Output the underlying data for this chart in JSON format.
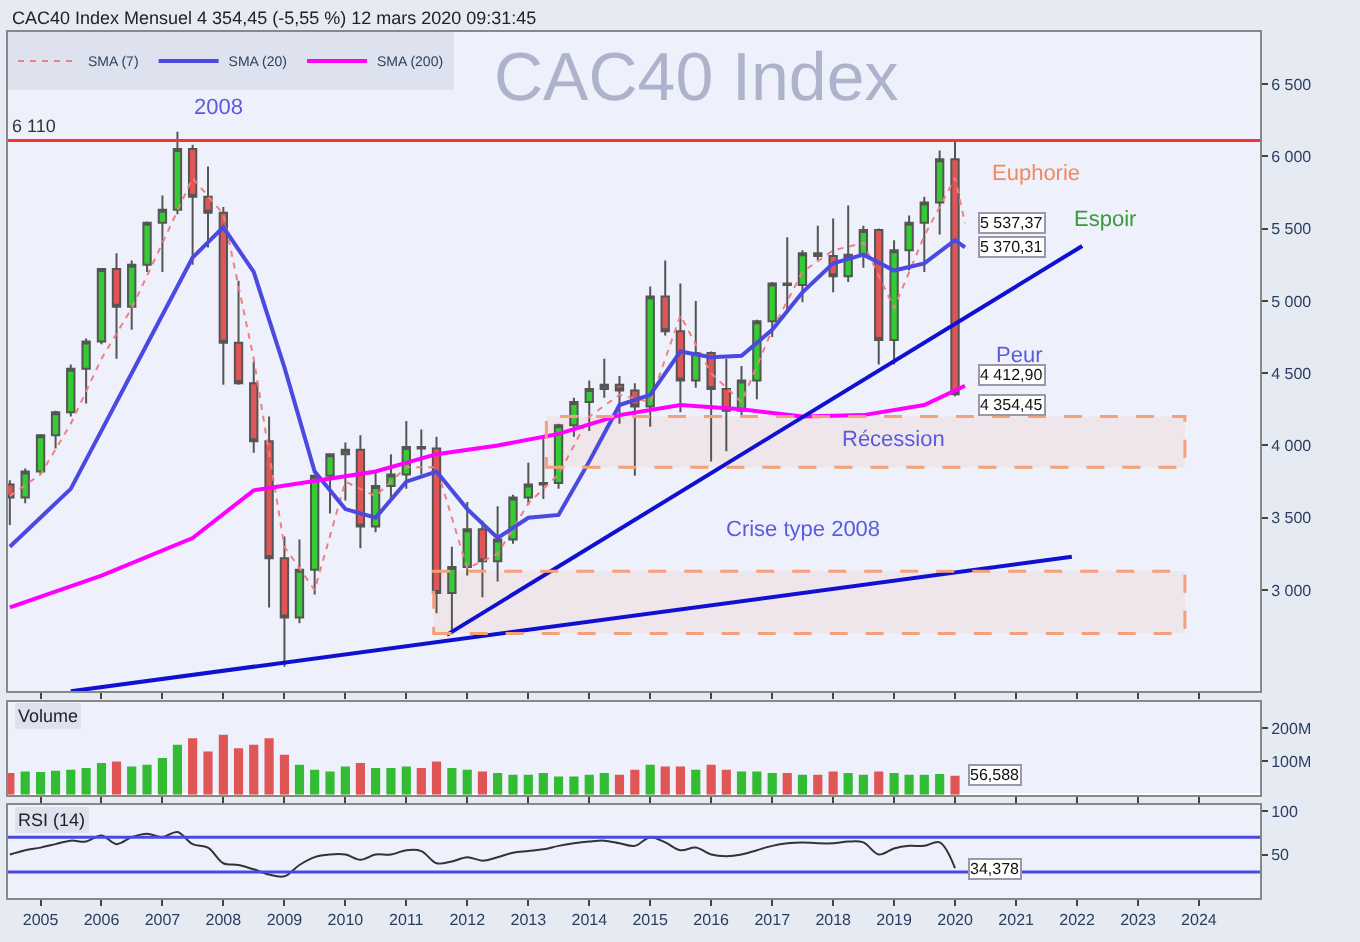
{
  "chart_data": [
    {
      "type": "candlestick",
      "title": "CAC40 Index",
      "subtitle": "CAC40 Index Mensuel 4 354,45 (-5,55 %) 12 mars 2020 09:31:45",
      "x": [
        "2004-07",
        "2004-10",
        "2005-01",
        "2005-04",
        "2005-07",
        "2005-10",
        "2006-01",
        "2006-04",
        "2006-07",
        "2006-10",
        "2007-01",
        "2007-04",
        "2007-07",
        "2007-10",
        "2008-01",
        "2008-04",
        "2008-07",
        "2008-10",
        "2009-01",
        "2009-04",
        "2009-07",
        "2009-10",
        "2010-01",
        "2010-04",
        "2010-07",
        "2010-10",
        "2011-01",
        "2011-04",
        "2011-07",
        "2011-10",
        "2012-01",
        "2012-04",
        "2012-07",
        "2012-10",
        "2013-01",
        "2013-04",
        "2013-07",
        "2013-10",
        "2014-01",
        "2014-04",
        "2014-07",
        "2014-10",
        "2015-01",
        "2015-04",
        "2015-07",
        "2015-10",
        "2016-01",
        "2016-04",
        "2016-07",
        "2016-10",
        "2017-01",
        "2017-04",
        "2017-07",
        "2017-10",
        "2018-01",
        "2018-04",
        "2018-07",
        "2018-10",
        "2019-01",
        "2019-04",
        "2019-07",
        "2019-10",
        "2020-01"
      ],
      "ohlc": [
        [
          3730,
          3760,
          3450,
          3640
        ],
        [
          3640,
          3840,
          3600,
          3820
        ],
        [
          3820,
          4080,
          3800,
          4070
        ],
        [
          4070,
          4240,
          3980,
          4230
        ],
        [
          4230,
          4560,
          4200,
          4530
        ],
        [
          4530,
          4740,
          4290,
          4720
        ],
        [
          4720,
          5220,
          4700,
          5220
        ],
        [
          5220,
          5330,
          4600,
          4960
        ],
        [
          4960,
          5280,
          4800,
          5250
        ],
        [
          5250,
          5550,
          5200,
          5540
        ],
        [
          5540,
          5730,
          5200,
          5630
        ],
        [
          5630,
          6170,
          5600,
          6050
        ],
        [
          6050,
          6080,
          5250,
          5720
        ],
        [
          5720,
          5930,
          5370,
          5610
        ],
        [
          5610,
          5650,
          4420,
          4710
        ],
        [
          4710,
          5140,
          4420,
          4430
        ],
        [
          4430,
          4580,
          3950,
          4030
        ],
        [
          4030,
          4200,
          2880,
          3220
        ],
        [
          3220,
          3370,
          2470,
          2810
        ],
        [
          2810,
          3350,
          2770,
          3140
        ],
        [
          3140,
          3800,
          2970,
          3790
        ],
        [
          3790,
          3940,
          3530,
          3940
        ],
        [
          3940,
          4020,
          3620,
          3970
        ],
        [
          3970,
          4070,
          3290,
          3440
        ],
        [
          3440,
          3830,
          3400,
          3720
        ],
        [
          3720,
          3940,
          3640,
          3800
        ],
        [
          3800,
          4170,
          3700,
          3990
        ],
        [
          3990,
          4110,
          3800,
          3980
        ],
        [
          3980,
          4060,
          2840,
          2980
        ],
        [
          2980,
          3300,
          2700,
          3160
        ],
        [
          3160,
          3610,
          3100,
          3420
        ],
        [
          3420,
          3480,
          2950,
          3200
        ],
        [
          3200,
          3580,
          3060,
          3350
        ],
        [
          3350,
          3660,
          3320,
          3640
        ],
        [
          3640,
          3880,
          3590,
          3730
        ],
        [
          3730,
          4050,
          3630,
          3740
        ],
        [
          3740,
          4150,
          3700,
          4140
        ],
        [
          4140,
          4330,
          4060,
          4300
        ],
        [
          4300,
          4450,
          4100,
          4390
        ],
        [
          4390,
          4600,
          4330,
          4420
        ],
        [
          4420,
          4480,
          4150,
          4380
        ],
        [
          4380,
          4430,
          3790,
          4270
        ],
        [
          4270,
          5100,
          4130,
          5030
        ],
        [
          5030,
          5280,
          4760,
          4790
        ],
        [
          4790,
          5120,
          4230,
          4450
        ],
        [
          4450,
          5000,
          4400,
          4640
        ],
        [
          4640,
          4650,
          3890,
          4390
        ],
        [
          4390,
          4600,
          3960,
          4240
        ],
        [
          4240,
          4550,
          4210,
          4450
        ],
        [
          4450,
          4870,
          4320,
          4860
        ],
        [
          4860,
          5130,
          4750,
          5120
        ],
        [
          5120,
          5440,
          4930,
          5110
        ],
        [
          5110,
          5350,
          4990,
          5330
        ],
        [
          5330,
          5520,
          5280,
          5310
        ],
        [
          5310,
          5570,
          5060,
          5170
        ],
        [
          5170,
          5660,
          5130,
          5320
        ],
        [
          5320,
          5520,
          5230,
          5490
        ],
        [
          5490,
          5500,
          4560,
          4730
        ],
        [
          4730,
          5420,
          4560,
          5350
        ],
        [
          5350,
          5590,
          5210,
          5540
        ],
        [
          5540,
          5720,
          5200,
          5680
        ],
        [
          5680,
          6040,
          5460,
          5980
        ],
        [
          5980,
          6110,
          4340,
          4354.45
        ]
      ],
      "series": [
        {
          "name": "SMA (7)",
          "type": "line",
          "color": "#f08080",
          "line_style": "dotted",
          "x": [
            "2004-07",
            "2005-01",
            "2005-07",
            "2006-01",
            "2006-07",
            "2007-01",
            "2007-07",
            "2008-01",
            "2008-07",
            "2009-01",
            "2009-07",
            "2010-01",
            "2010-07",
            "2011-01",
            "2011-07",
            "2012-01",
            "2012-07",
            "2013-01",
            "2013-07",
            "2014-01",
            "2014-07",
            "2015-01",
            "2015-07",
            "2016-01",
            "2016-07",
            "2017-01",
            "2017-07",
            "2018-01",
            "2018-07",
            "2019-01",
            "2019-07",
            "2020-01",
            "2020-03"
          ],
          "values": [
            3650,
            3800,
            4150,
            4600,
            4950,
            5400,
            5850,
            5600,
            4600,
            3300,
            3000,
            3750,
            3650,
            3850,
            3850,
            3150,
            3250,
            3600,
            3800,
            4200,
            4350,
            4300,
            4900,
            4500,
            4300,
            4800,
            5200,
            5350,
            5400,
            4950,
            5450,
            5850,
            5537.37
          ]
        },
        {
          "name": "SMA (20)",
          "type": "line",
          "color": "#4a4ae0",
          "line_style": "solid",
          "x": [
            "2004-07",
            "2005-07",
            "2006-07",
            "2007-07",
            "2008-01",
            "2008-07",
            "2009-01",
            "2009-07",
            "2010-01",
            "2010-07",
            "2011-01",
            "2011-07",
            "2012-01",
            "2012-07",
            "2013-01",
            "2013-07",
            "2014-01",
            "2014-07",
            "2015-01",
            "2015-07",
            "2016-01",
            "2016-07",
            "2017-01",
            "2017-07",
            "2018-01",
            "2018-07",
            "2019-01",
            "2019-07",
            "2020-01",
            "2020-03"
          ],
          "values": [
            3300,
            3700,
            4500,
            5300,
            5510,
            5200,
            4540,
            3820,
            3560,
            3500,
            3750,
            3820,
            3560,
            3360,
            3500,
            3520,
            3890,
            4280,
            4350,
            4650,
            4610,
            4620,
            4800,
            5060,
            5260,
            5320,
            5210,
            5260,
            5420,
            5370.31
          ]
        },
        {
          "name": "SMA (200)",
          "type": "line",
          "color": "#ff00ff",
          "line_style": "solid",
          "x": [
            "2004-07",
            "2006-01",
            "2007-07",
            "2008-07",
            "2009-07",
            "2010-07",
            "2011-07",
            "2012-07",
            "2013-07",
            "2014-07",
            "2015-07",
            "2016-07",
            "2017-07",
            "2018-07",
            "2019-07",
            "2020-03"
          ],
          "values": [
            2880,
            3100,
            3360,
            3690,
            3755,
            3820,
            3940,
            4000,
            4080,
            4210,
            4280,
            4250,
            4200,
            4210,
            4280,
            4412.9
          ]
        },
        {
          "type": "line",
          "color": "#1010d0",
          "line_style": "solid",
          "x": [
            "2011-09",
            "2022-02"
          ],
          "values": [
            2690,
            5380
          ]
        },
        {
          "type": "line",
          "color": "#1010d0",
          "line_style": "solid",
          "x": [
            "2005-07",
            "2021-12"
          ],
          "values": [
            2300,
            3230
          ]
        }
      ],
      "ref_lines": [
        {
          "axis": "y",
          "value": 6110,
          "label": "6 110",
          "color": "#ff3030"
        }
      ],
      "bands": [
        {
          "axis": "y",
          "from": 3850,
          "to": 4200,
          "color": "#f4a07a"
        },
        {
          "axis": "y",
          "from": 2700,
          "to": 3130,
          "color": "#f4a07a"
        }
      ],
      "annotations": [
        "2008",
        "Euphorie",
        "Espoir",
        "Peur",
        "Récession",
        "Crise type 2008",
        {
          "text": "5 537,37",
          "x": "2020-03",
          "y": 5537.37
        },
        {
          "text": "5 370,31",
          "x": "2020-03",
          "y": 5370.31
        },
        {
          "text": "4 412,90",
          "x": "2020-03",
          "y": 4412.9
        },
        {
          "text": "4 354,45",
          "x": "2020-03",
          "y": 4354.45
        }
      ],
      "xlim": [
        "2004-06-20",
        "2025-01-01"
      ],
      "ylim": [
        2300,
        6860
      ],
      "yticks": [
        {
          "value": 3000,
          "label": "3 000"
        },
        {
          "value": 3500,
          "label": "3 500"
        },
        {
          "value": 4000,
          "label": "4 000"
        },
        {
          "value": 4500,
          "label": "4 500"
        },
        {
          "value": 5000,
          "label": "5 000"
        },
        {
          "value": 5500,
          "label": "5 500"
        },
        {
          "value": 6000,
          "label": "6 000"
        },
        {
          "value": 6500,
          "label": "6 500"
        }
      ],
      "legend": "top left",
      "tick_labels": "y"
    },
    {
      "type": "bar",
      "title": "Volume",
      "x": [
        "2004-07",
        "2004-10",
        "2005-01",
        "2005-04",
        "2005-07",
        "2005-10",
        "2006-01",
        "2006-04",
        "2006-07",
        "2006-10",
        "2007-01",
        "2007-04",
        "2007-07",
        "2007-10",
        "2008-01",
        "2008-04",
        "2008-07",
        "2008-10",
        "2009-01",
        "2009-04",
        "2009-07",
        "2009-10",
        "2010-01",
        "2010-04",
        "2010-07",
        "2010-10",
        "2011-01",
        "2011-04",
        "2011-07",
        "2011-10",
        "2012-01",
        "2012-04",
        "2012-07",
        "2012-10",
        "2013-01",
        "2013-04",
        "2013-07",
        "2013-10",
        "2014-01",
        "2014-04",
        "2014-07",
        "2014-10",
        "2015-01",
        "2015-04",
        "2015-07",
        "2015-10",
        "2016-01",
        "2016-04",
        "2016-07",
        "2016-10",
        "2017-01",
        "2017-04",
        "2017-07",
        "2017-10",
        "2018-01",
        "2018-04",
        "2018-07",
        "2018-10",
        "2019-01",
        "2019-04",
        "2019-07",
        "2019-10",
        "2020-01"
      ],
      "values": [
        65,
        70,
        68,
        72,
        75,
        80,
        95,
        100,
        85,
        90,
        110,
        150,
        170,
        130,
        180,
        140,
        150,
        170,
        120,
        90,
        75,
        70,
        85,
        95,
        80,
        80,
        85,
        80,
        100,
        80,
        75,
        70,
        65,
        60,
        60,
        65,
        55,
        55,
        60,
        65,
        60,
        75,
        90,
        85,
        85,
        75,
        90,
        75,
        70,
        70,
        65,
        65,
        60,
        60,
        70,
        65,
        60,
        70,
        65,
        60,
        60,
        62,
        56.588
      ],
      "colors": [
        "#e05555",
        "#33bb33",
        "#33bb33",
        "#33bb33",
        "#33bb33",
        "#33bb33",
        "#33bb33",
        "#e05555",
        "#33bb33",
        "#33bb33",
        "#33bb33",
        "#33bb33",
        "#e05555",
        "#e05555",
        "#e05555",
        "#e05555",
        "#e05555",
        "#e05555",
        "#e05555",
        "#33bb33",
        "#33bb33",
        "#33bb33",
        "#33bb33",
        "#e05555",
        "#33bb33",
        "#33bb33",
        "#33bb33",
        "#e05555",
        "#e05555",
        "#33bb33",
        "#33bb33",
        "#e05555",
        "#33bb33",
        "#33bb33",
        "#33bb33",
        "#33bb33",
        "#33bb33",
        "#33bb33",
        "#33bb33",
        "#33bb33",
        "#e05555",
        "#e05555",
        "#33bb33",
        "#e05555",
        "#e05555",
        "#33bb33",
        "#e05555",
        "#e05555",
        "#33bb33",
        "#33bb33",
        "#33bb33",
        "#e05555",
        "#33bb33",
        "#e05555",
        "#e05555",
        "#33bb33",
        "#33bb33",
        "#e05555",
        "#33bb33",
        "#33bb33",
        "#33bb33",
        "#33bb33",
        "#e05555"
      ],
      "annotations": [
        {
          "text": "56,588",
          "x": "2020-01",
          "y": 56.588
        }
      ],
      "xlim": [
        "2004-06-20",
        "2025-01-01"
      ],
      "ylim": [
        0,
        280
      ],
      "yticks": [
        {
          "value": 100,
          "label": "100M"
        },
        {
          "value": 200,
          "label": "200M"
        }
      ],
      "tick_labels": "y"
    },
    {
      "type": "line",
      "title": "RSI (14)",
      "color": "#333333",
      "x": [
        "2004-07",
        "2004-10",
        "2005-01",
        "2005-04",
        "2005-07",
        "2005-10",
        "2006-01",
        "2006-04",
        "2006-07",
        "2006-10",
        "2007-01",
        "2007-04",
        "2007-07",
        "2007-10",
        "2008-01",
        "2008-04",
        "2008-07",
        "2008-10",
        "2009-01",
        "2009-04",
        "2009-07",
        "2009-10",
        "2010-01",
        "2010-04",
        "2010-07",
        "2010-10",
        "2011-01",
        "2011-04",
        "2011-07",
        "2011-10",
        "2012-01",
        "2012-04",
        "2012-07",
        "2012-10",
        "2013-01",
        "2013-04",
        "2013-07",
        "2013-10",
        "2014-01",
        "2014-04",
        "2014-07",
        "2014-10",
        "2015-01",
        "2015-04",
        "2015-07",
        "2015-10",
        "2016-01",
        "2016-04",
        "2016-07",
        "2016-10",
        "2017-01",
        "2017-04",
        "2017-07",
        "2017-10",
        "2018-01",
        "2018-04",
        "2018-07",
        "2018-10",
        "2019-01",
        "2019-04",
        "2019-07",
        "2019-10",
        "2020-01"
      ],
      "values": [
        50,
        55,
        58,
        62,
        66,
        65,
        72,
        62,
        70,
        74,
        70,
        76,
        62,
        58,
        40,
        38,
        33,
        27,
        25,
        38,
        47,
        50,
        50,
        44,
        50,
        50,
        55,
        54,
        40,
        42,
        47,
        43,
        47,
        52,
        54,
        56,
        60,
        63,
        65,
        66,
        63,
        60,
        70,
        64,
        55,
        58,
        50,
        48,
        50,
        55,
        60,
        63,
        64,
        63,
        63,
        65,
        64,
        50,
        57,
        60,
        60,
        64,
        34.378
      ],
      "ref_lines": [
        {
          "axis": "y",
          "value": 70,
          "color": "#4a4ae0"
        },
        {
          "axis": "y",
          "value": 30,
          "color": "#4a4ae0"
        }
      ],
      "annotations": [
        {
          "text": "34,378",
          "x": "2020-01",
          "y": 34.378
        }
      ],
      "xlim": [
        "2004-06-20",
        "2025-01-01"
      ],
      "xticks": [
        {
          "value": "2005",
          "label": "2005"
        },
        {
          "value": "2006",
          "label": "2006"
        },
        {
          "value": "2007",
          "label": "2007"
        },
        {
          "value": "2008",
          "label": "2008"
        },
        {
          "value": "2009",
          "label": "2009"
        },
        {
          "value": "2010",
          "label": "2010"
        },
        {
          "value": "2011",
          "label": "2011"
        },
        {
          "value": "2012",
          "label": "2012"
        },
        {
          "value": "2013",
          "label": "2013"
        },
        {
          "value": "2014",
          "label": "2014"
        },
        {
          "value": "2015",
          "label": "2015"
        },
        {
          "value": "2016",
          "label": "2016"
        },
        {
          "value": "2017",
          "label": "2017"
        },
        {
          "value": "2018",
          "label": "2018"
        },
        {
          "value": "2019",
          "label": "2019"
        },
        {
          "value": "2020",
          "label": "2020"
        },
        {
          "value": "2021",
          "label": "2021"
        },
        {
          "value": "2022",
          "label": "2022"
        },
        {
          "value": "2023",
          "label": "2023"
        },
        {
          "value": "2024",
          "label": "2024"
        }
      ],
      "ylim": [
        0,
        107
      ],
      "yticks": [
        50,
        100
      ]
    }
  ]
}
